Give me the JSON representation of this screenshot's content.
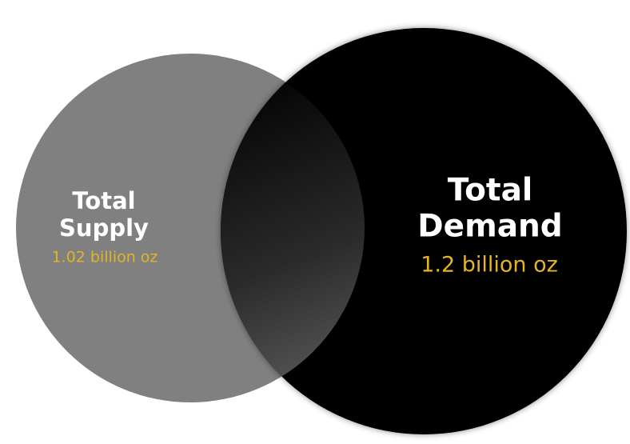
{
  "supply": {
    "title_lines": [
      "Total",
      "Supply"
    ],
    "amount": "1.02 billion oz"
  },
  "demand": {
    "title_lines": [
      "Total",
      "Demand"
    ],
    "amount": "1.2 billion oz"
  }
}
